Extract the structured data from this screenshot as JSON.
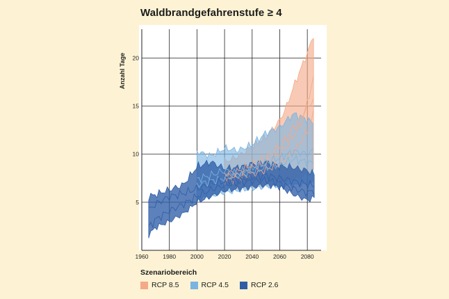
{
  "chart_data": {
    "type": "area",
    "title": "Waldbrandgefahrenstufe ≥ 4",
    "ylabel": "Anzahl Tage",
    "xlabel": "",
    "xlim": [
      1960,
      2090
    ],
    "ylim": [
      0,
      23
    ],
    "x_ticks": [
      1960,
      1980,
      2000,
      2020,
      2040,
      2060,
      2080
    ],
    "y_ticks": [
      5,
      10,
      15,
      20
    ],
    "grid": true,
    "legend_title": "Szenariobereich",
    "legend_position": "bottom-left",
    "series": [
      {
        "name": "RCP 8.5",
        "color": "#f4a988",
        "x": [
          2020,
          2030,
          2040,
          2050,
          2060,
          2065,
          2070,
          2075,
          2080,
          2085
        ],
        "lower": [
          6.8,
          6.4,
          6.6,
          6.8,
          7.0,
          7.2,
          7.4,
          7.6,
          7.9,
          8.2
        ],
        "upper": [
          9.2,
          9.8,
          10.8,
          11.8,
          13.5,
          15.0,
          17.0,
          18.8,
          20.5,
          22.6
        ],
        "members": [
          [
            8.0,
            8.2,
            8.9,
            9.6,
            10.8,
            11.7,
            12.8,
            13.7,
            14.8,
            15.8
          ],
          [
            7.6,
            7.8,
            8.6,
            9.0,
            10.1,
            10.8,
            11.9,
            13.0,
            15.4,
            18.2
          ],
          [
            7.3,
            7.5,
            7.9,
            8.4,
            9.0,
            9.6,
            10.3,
            11.2,
            12.4,
            14.4
          ]
        ]
      },
      {
        "name": "RCP 4.5",
        "color": "#7ab4e2",
        "x": [
          2000,
          2010,
          2020,
          2030,
          2040,
          2050,
          2060,
          2070,
          2080,
          2085
        ],
        "lower": [
          5.3,
          5.6,
          6.0,
          6.2,
          6.4,
          6.6,
          6.7,
          6.8,
          6.9,
          7.0
        ],
        "upper": [
          10.3,
          9.8,
          10.6,
          10.4,
          11.0,
          12.2,
          12.8,
          14.2,
          13.6,
          13.2
        ],
        "members": [
          [
            7.4,
            7.8,
            8.3,
            8.0,
            8.6,
            9.2,
            9.6,
            10.3,
            10.0,
            10.4
          ],
          [
            6.8,
            7.2,
            7.5,
            7.8,
            8.2,
            8.6,
            8.9,
            9.5,
            9.2,
            9.0
          ]
        ]
      },
      {
        "name": "RCP 2.6",
        "color": "#2f5ea6",
        "x": [
          1965,
          1970,
          1980,
          1990,
          2000,
          2010,
          2020,
          2030,
          2040,
          2050,
          2060,
          2070,
          2080,
          2085
        ],
        "lower": [
          1.6,
          2.4,
          3.0,
          3.8,
          5.0,
          5.6,
          6.2,
          6.4,
          6.6,
          6.8,
          6.6,
          5.8,
          5.2,
          5.5
        ],
        "upper": [
          5.6,
          5.8,
          6.3,
          6.8,
          8.7,
          9.2,
          8.5,
          8.6,
          9.0,
          9.2,
          8.8,
          8.6,
          8.3,
          7.9
        ],
        "members": [
          [
            4.2,
            4.8,
            5.6,
            5.9,
            6.4,
            6.9,
            7.2,
            7.4,
            7.6,
            7.8,
            7.5,
            7.2,
            6.9,
            6.7
          ],
          [
            2.4,
            3.2,
            4.1,
            4.8,
            5.6,
            6.3,
            6.8,
            7.0,
            7.2,
            7.3,
            7.0,
            6.4,
            6.0,
            6.2
          ]
        ]
      }
    ]
  }
}
